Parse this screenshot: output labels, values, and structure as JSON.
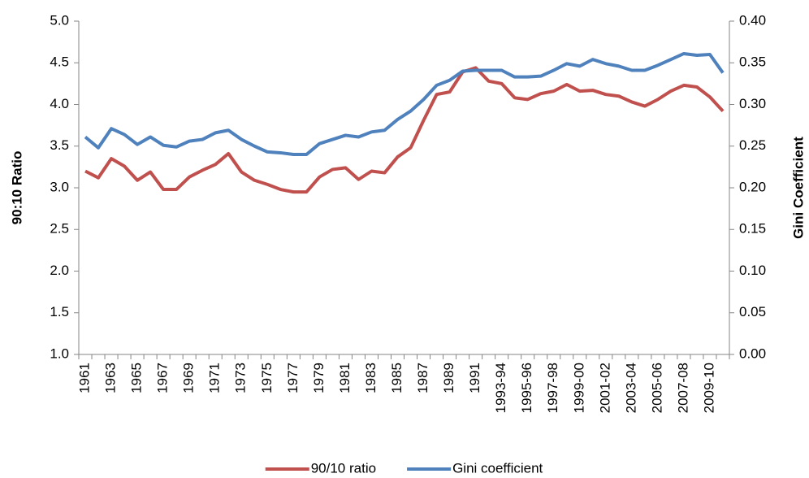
{
  "chart_data": {
    "type": "line",
    "y_label": "90:10 Ratio",
    "y2_label": "Gini Coefficient",
    "categories": [
      "1961",
      null,
      "1963",
      null,
      "1965",
      null,
      "1967",
      null,
      "1969",
      null,
      "1971",
      null,
      "1973",
      null,
      "1975",
      null,
      "1977",
      null,
      "1979",
      null,
      "1981",
      null,
      "1983",
      null,
      "1985",
      null,
      "1987",
      null,
      "1989",
      null,
      "1991",
      null,
      "1993-94",
      null,
      "1995-96",
      null,
      "1997-98",
      null,
      "1999-00",
      null,
      "2001-02",
      null,
      "2003-04",
      null,
      "2005-06",
      null,
      "2007-08",
      null,
      "2009-10",
      null
    ],
    "series": [
      {
        "name": "90/10 ratio",
        "color": "#c0504d",
        "values": [
          3.2,
          3.12,
          3.35,
          3.26,
          3.09,
          3.19,
          2.98,
          2.98,
          3.13,
          3.21,
          3.28,
          3.41,
          3.19,
          3.09,
          3.04,
          2.98,
          2.95,
          2.95,
          3.13,
          3.22,
          3.24,
          3.1,
          3.2,
          3.18,
          3.37,
          3.48,
          3.81,
          4.12,
          4.15,
          4.39,
          4.44,
          4.28,
          4.25,
          4.08,
          4.06,
          4.13,
          4.16,
          4.24,
          4.16,
          4.17,
          4.12,
          4.1,
          4.03,
          3.98,
          4.06,
          4.16,
          4.23,
          4.21,
          4.09,
          3.92
        ]
      },
      {
        "name": "Gini coefficient",
        "color": "#4f81bd",
        "axis": "y2",
        "values": [
          0.261,
          0.248,
          0.271,
          0.264,
          0.252,
          0.261,
          0.251,
          0.249,
          0.256,
          0.258,
          0.266,
          0.269,
          0.258,
          0.25,
          0.243,
          0.242,
          0.24,
          0.24,
          0.253,
          0.258,
          0.263,
          0.261,
          0.267,
          0.269,
          0.282,
          0.292,
          0.306,
          0.323,
          0.329,
          0.34,
          0.341,
          0.341,
          0.341,
          0.333,
          0.333,
          0.334,
          0.341,
          0.349,
          0.346,
          0.354,
          0.349,
          0.346,
          0.341,
          0.341,
          0.347,
          0.354,
          0.361,
          0.359,
          0.36,
          0.338
        ]
      }
    ],
    "ylim": [
      1.0,
      5.0
    ],
    "yticks": [
      {
        "value": 1.0,
        "label": "1.0"
      },
      1.5,
      {
        "value": 2.0,
        "label": "2.0"
      },
      2.5,
      {
        "value": 3.0,
        "label": "3.0"
      },
      3.5,
      {
        "value": 4.0,
        "label": "4.0"
      },
      4.5,
      {
        "value": 5.0,
        "label": "5.0"
      }
    ],
    "y2lim": [
      0,
      0.4
    ],
    "y2ticks": [
      {
        "value": 0,
        "label": "0.00"
      },
      0.05,
      {
        "value": 0.1,
        "label": "0.10"
      },
      0.15,
      {
        "value": 0.2,
        "label": "0.20"
      },
      0.25,
      {
        "value": 0.3,
        "label": "0.30"
      },
      0.35,
      {
        "value": 0.4,
        "label": "0.40"
      }
    ],
    "grid": false,
    "legend": "bottom"
  }
}
